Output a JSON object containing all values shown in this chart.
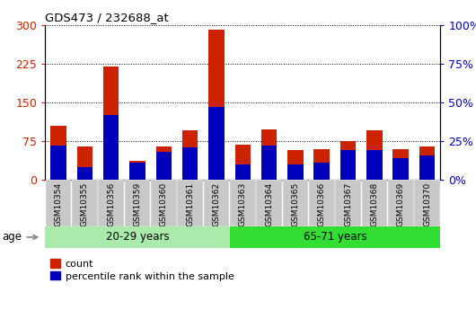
{
  "title": "GDS473 / 232688_at",
  "samples": [
    "GSM10354",
    "GSM10355",
    "GSM10356",
    "GSM10359",
    "GSM10360",
    "GSM10361",
    "GSM10362",
    "GSM10363",
    "GSM10364",
    "GSM10365",
    "GSM10366",
    "GSM10367",
    "GSM10368",
    "GSM10369",
    "GSM10370"
  ],
  "count_values": [
    105,
    65,
    220,
    37,
    65,
    95,
    290,
    68,
    98,
    57,
    60,
    75,
    95,
    60,
    65
  ],
  "percentile_values": [
    22,
    8,
    42,
    11,
    18,
    21,
    47,
    10,
    22,
    10,
    11,
    19,
    19,
    14,
    16
  ],
  "group_labels": [
    "20-29 years",
    "65-71 years"
  ],
  "group_split": 7,
  "bar_color_red": "#CC2200",
  "bar_color_blue": "#0000BB",
  "left_axis_color": "#CC2200",
  "right_axis_color": "#0000BB",
  "ylim_left": [
    0,
    300
  ],
  "ylim_right": [
    0,
    100
  ],
  "yticks_left": [
    0,
    75,
    150,
    225,
    300
  ],
  "yticks_right": [
    0,
    25,
    50,
    75,
    100
  ],
  "ytick_labels_right": [
    "0%",
    "25%",
    "50%",
    "75%",
    "100%"
  ],
  "legend_count": "count",
  "legend_pct": "percentile rank within the sample",
  "age_label": "age",
  "bar_width": 0.6
}
